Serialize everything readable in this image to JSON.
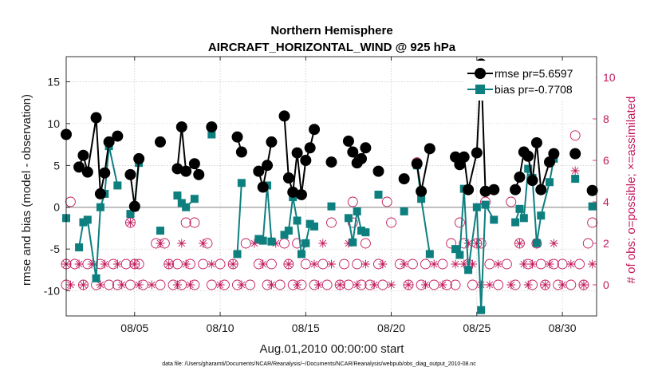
{
  "chart_data": {
    "type": "line",
    "title": "Northern Hemisphere",
    "subtitle": "AIRCRAFT_HORIZONTAL_WIND @ 925 hPa",
    "xlabel": "Aug.01,2010 00:00:00 start",
    "ylabel": "rmse and bias (model - observation)",
    "ylabel_right": "# of obs: o=possible; ×=assimilated",
    "footnote": "data file: /Users/gharamti/Documents/NCAR/Reanalysis/~/Documents/NCAR/Reanalysis/webpub/obs_diag_output_2010-08.nc",
    "xlim": [
      1,
      32
    ],
    "ylim": [
      -13,
      18
    ],
    "ylim_right": [
      -1.5,
      11
    ],
    "x_ticks": [
      5,
      10,
      15,
      20,
      25,
      30
    ],
    "x_tick_labels": [
      "08/05",
      "08/10",
      "08/15",
      "08/20",
      "08/25",
      "08/30"
    ],
    "y_ticks": [
      -10,
      -5,
      0,
      5,
      10,
      15
    ],
    "y_tick_labels": [
      "-10",
      "-5",
      "0",
      "5",
      "10",
      "15"
    ],
    "y_right_ticks": [
      0,
      2,
      4,
      6,
      8,
      10
    ],
    "y_right_tick_labels": [
      "0",
      "2",
      "4",
      "6",
      "8",
      "10"
    ],
    "grid": true,
    "legend_position": "top-right",
    "colors": {
      "rmse": "#000000",
      "bias": "#0e7f7f",
      "obs": "#c2185b",
      "grid": "#bbbbbb",
      "zero": "#aaaaaa"
    },
    "series": [
      {
        "name": "rmse",
        "legend_label": "rmse pr=5.6597",
        "marker": "circle",
        "points": [
          [
            1.0,
            8.7
          ],
          [
            1.75,
            4.8
          ],
          [
            2.0,
            6.2
          ],
          [
            2.25,
            4.2
          ],
          [
            2.75,
            10.7
          ],
          [
            3.0,
            1.6
          ],
          [
            3.25,
            4.1
          ],
          [
            3.5,
            7.8
          ],
          [
            4.0,
            8.5
          ],
          [
            4.75,
            3.9
          ],
          [
            5.0,
            0.1
          ],
          [
            5.25,
            5.8
          ],
          [
            6.5,
            7.8
          ],
          [
            7.5,
            4.6
          ],
          [
            7.75,
            9.6
          ],
          [
            8.0,
            4.3
          ],
          [
            8.5,
            5.2
          ],
          [
            8.75,
            3.9
          ],
          [
            9.5,
            9.6
          ],
          [
            11.0,
            8.4
          ],
          [
            11.25,
            6.6
          ],
          [
            12.25,
            4.3
          ],
          [
            12.5,
            2.4
          ],
          [
            12.75,
            5.0
          ],
          [
            13.0,
            7.8
          ],
          [
            13.75,
            10.9
          ],
          [
            14.0,
            3.5
          ],
          [
            14.25,
            1.8
          ],
          [
            14.5,
            6.5
          ],
          [
            14.75,
            1.5
          ],
          [
            15.0,
            5.6
          ],
          [
            15.25,
            7.1
          ],
          [
            15.5,
            9.3
          ],
          [
            16.5,
            5.4
          ],
          [
            17.5,
            7.9
          ],
          [
            17.75,
            6.6
          ],
          [
            18.0,
            5.3
          ],
          [
            18.25,
            5.8
          ],
          [
            18.5,
            7.1
          ],
          [
            19.25,
            4.3
          ],
          [
            20.75,
            3.4
          ],
          [
            21.5,
            5.2
          ],
          [
            21.75,
            1.9
          ],
          [
            22.25,
            7.0
          ],
          [
            23.75,
            6.0
          ],
          [
            24.0,
            5.1
          ],
          [
            24.25,
            6.0
          ],
          [
            24.5,
            2.1
          ],
          [
            25.0,
            6.5
          ],
          [
            25.25,
            17.1
          ],
          [
            25.5,
            1.9
          ],
          [
            26.0,
            2.1
          ],
          [
            27.25,
            2.1
          ],
          [
            27.5,
            3.6
          ],
          [
            27.75,
            6.6
          ],
          [
            28.0,
            6.1
          ],
          [
            28.25,
            3.2
          ],
          [
            28.5,
            7.7
          ],
          [
            28.75,
            2.1
          ],
          [
            29.25,
            5.4
          ],
          [
            29.5,
            6.4
          ],
          [
            30.75,
            6.4
          ],
          [
            31.75,
            2.0
          ]
        ]
      },
      {
        "name": "bias",
        "legend_label": "bias pr=-0.7708",
        "marker": "square",
        "points": [
          [
            1.0,
            -1.3
          ],
          [
            1.75,
            -4.8
          ],
          [
            2.0,
            -1.8
          ],
          [
            2.25,
            -1.5
          ],
          [
            2.75,
            -8.5
          ],
          [
            3.0,
            0.0
          ],
          [
            3.25,
            1.6
          ],
          [
            3.5,
            7.3
          ],
          [
            4.0,
            2.6
          ],
          [
            4.75,
            -0.8
          ],
          [
            5.0,
            0.0
          ],
          [
            5.25,
            5.3
          ],
          [
            6.5,
            -2.8
          ],
          [
            7.5,
            1.4
          ],
          [
            7.75,
            0.5
          ],
          [
            8.0,
            0.0
          ],
          [
            8.5,
            1.0
          ],
          [
            9.5,
            8.7
          ],
          [
            11.0,
            -5.6
          ],
          [
            11.25,
            2.9
          ],
          [
            12.25,
            -3.8
          ],
          [
            12.5,
            -4.0
          ],
          [
            12.75,
            2.6
          ],
          [
            13.0,
            -4.1
          ],
          [
            13.75,
            -3.3
          ],
          [
            14.0,
            -2.8
          ],
          [
            14.25,
            1.2
          ],
          [
            14.5,
            -1.6
          ],
          [
            14.75,
            -5.6
          ],
          [
            15.0,
            -4.3
          ],
          [
            15.25,
            -2.0
          ],
          [
            15.5,
            -2.3
          ],
          [
            16.5,
            0.1
          ],
          [
            17.5,
            -1.3
          ],
          [
            17.75,
            -4.2
          ],
          [
            18.0,
            -0.5
          ],
          [
            18.25,
            -2.8
          ],
          [
            18.5,
            -3.0
          ],
          [
            19.25,
            1.5
          ],
          [
            20.75,
            -0.5
          ],
          [
            21.5,
            5.0
          ],
          [
            21.75,
            1.0
          ],
          [
            22.25,
            -5.6
          ],
          [
            23.75,
            -5.0
          ],
          [
            24.0,
            -5.7
          ],
          [
            24.25,
            2.2
          ],
          [
            24.5,
            -7.5
          ],
          [
            25.0,
            0.0
          ],
          [
            25.25,
            -12.3
          ],
          [
            25.5,
            0.3
          ],
          [
            26.0,
            -1.5
          ],
          [
            27.25,
            -1.8
          ],
          [
            27.5,
            -0.2
          ],
          [
            27.75,
            -1.3
          ],
          [
            28.0,
            4.6
          ],
          [
            28.25,
            3.5
          ],
          [
            28.5,
            -4.3
          ],
          [
            28.75,
            -1.0
          ],
          [
            29.25,
            3.0
          ],
          [
            29.5,
            5.8
          ],
          [
            30.75,
            3.4
          ],
          [
            31.75,
            0.1
          ]
        ]
      }
    ],
    "obs_possible": [
      [
        1.0,
        1
      ],
      [
        1.0,
        0
      ],
      [
        1.25,
        4
      ],
      [
        1.5,
        1
      ],
      [
        2.0,
        0
      ],
      [
        2.25,
        1
      ],
      [
        2.75,
        0
      ],
      [
        3.0,
        1
      ],
      [
        3.5,
        0
      ],
      [
        3.75,
        1
      ],
      [
        4.0,
        0
      ],
      [
        4.5,
        1
      ],
      [
        4.75,
        0
      ],
      [
        4.75,
        3
      ],
      [
        5.0,
        1
      ],
      [
        5.25,
        1
      ],
      [
        5.5,
        0
      ],
      [
        6.25,
        2
      ],
      [
        6.5,
        0
      ],
      [
        6.75,
        2
      ],
      [
        7.0,
        1
      ],
      [
        7.25,
        0
      ],
      [
        7.5,
        1
      ],
      [
        7.75,
        0
      ],
      [
        8.0,
        3
      ],
      [
        8.25,
        1
      ],
      [
        8.5,
        0
      ],
      [
        8.5,
        3
      ],
      [
        9.0,
        1
      ],
      [
        9.25,
        2
      ],
      [
        9.5,
        0
      ],
      [
        10.0,
        1
      ],
      [
        10.25,
        0
      ],
      [
        10.75,
        1
      ],
      [
        11.0,
        0
      ],
      [
        11.5,
        2
      ],
      [
        11.75,
        0
      ],
      [
        12.25,
        1
      ],
      [
        12.75,
        0
      ],
      [
        13.0,
        1
      ],
      [
        13.5,
        0
      ],
      [
        13.75,
        2
      ],
      [
        14.0,
        1
      ],
      [
        14.25,
        0
      ],
      [
        14.5,
        2
      ],
      [
        14.75,
        0
      ],
      [
        15.0,
        1
      ],
      [
        15.5,
        0
      ],
      [
        16.0,
        1
      ],
      [
        16.25,
        0
      ],
      [
        16.5,
        3
      ],
      [
        17.0,
        0
      ],
      [
        17.25,
        1
      ],
      [
        17.5,
        0
      ],
      [
        17.75,
        4
      ],
      [
        17.75,
        3
      ],
      [
        18.0,
        1
      ],
      [
        18.25,
        0
      ],
      [
        18.5,
        2
      ],
      [
        18.75,
        0
      ],
      [
        19.25,
        1
      ],
      [
        19.5,
        0
      ],
      [
        19.75,
        4
      ],
      [
        20.0,
        3
      ],
      [
        20.5,
        1
      ],
      [
        21.0,
        0
      ],
      [
        21.25,
        1
      ],
      [
        21.5,
        5.9
      ],
      [
        21.75,
        0
      ],
      [
        22.0,
        1
      ],
      [
        22.5,
        0
      ],
      [
        23.0,
        1
      ],
      [
        23.25,
        0
      ],
      [
        23.5,
        2
      ],
      [
        23.75,
        0
      ],
      [
        24.0,
        3
      ],
      [
        24.25,
        2
      ],
      [
        24.5,
        1
      ],
      [
        24.75,
        0
      ],
      [
        25.0,
        2
      ],
      [
        25.25,
        2
      ],
      [
        25.5,
        4
      ],
      [
        25.75,
        1
      ],
      [
        26.25,
        0
      ],
      [
        26.75,
        1
      ],
      [
        27.0,
        4
      ],
      [
        27.25,
        0
      ],
      [
        27.5,
        2
      ],
      [
        28.0,
        1
      ],
      [
        28.25,
        0
      ],
      [
        28.5,
        2
      ],
      [
        28.75,
        1
      ],
      [
        29.0,
        0
      ],
      [
        29.5,
        1
      ],
      [
        29.75,
        0
      ],
      [
        30.0,
        1
      ],
      [
        30.5,
        0
      ],
      [
        30.75,
        7.2
      ],
      [
        31.0,
        1
      ],
      [
        31.25,
        0
      ],
      [
        31.5,
        2
      ],
      [
        31.75,
        3
      ]
    ],
    "obs_assimilated": [
      [
        1.0,
        1
      ],
      [
        1.25,
        0
      ],
      [
        1.75,
        1
      ],
      [
        2.0,
        0
      ],
      [
        2.5,
        1
      ],
      [
        3.0,
        0
      ],
      [
        3.25,
        1
      ],
      [
        4.0,
        1
      ],
      [
        4.25,
        0
      ],
      [
        4.75,
        3
      ],
      [
        5.0,
        1
      ],
      [
        5.25,
        0
      ],
      [
        6.0,
        0
      ],
      [
        6.5,
        2
      ],
      [
        7.0,
        1
      ],
      [
        7.5,
        0
      ],
      [
        7.75,
        2
      ],
      [
        8.0,
        1
      ],
      [
        8.25,
        0
      ],
      [
        9.0,
        2
      ],
      [
        9.5,
        1
      ],
      [
        10.0,
        0
      ],
      [
        10.75,
        1
      ],
      [
        11.25,
        0
      ],
      [
        12.0,
        2
      ],
      [
        12.5,
        1
      ],
      [
        13.0,
        0
      ],
      [
        13.25,
        2
      ],
      [
        14.0,
        1
      ],
      [
        14.5,
        0
      ],
      [
        15.0,
        2
      ],
      [
        15.5,
        1
      ],
      [
        15.75,
        0
      ],
      [
        16.0,
        2
      ],
      [
        16.5,
        1
      ],
      [
        17.0,
        0
      ],
      [
        17.5,
        2
      ],
      [
        18.0,
        0
      ],
      [
        18.5,
        1
      ],
      [
        19.0,
        0
      ],
      [
        19.5,
        1
      ],
      [
        20.0,
        0
      ],
      [
        20.75,
        1
      ],
      [
        21.0,
        0
      ],
      [
        21.5,
        5.9
      ],
      [
        22.0,
        0
      ],
      [
        22.5,
        1
      ],
      [
        23.0,
        0
      ],
      [
        23.75,
        1
      ],
      [
        24.25,
        1
      ],
      [
        24.5,
        2
      ],
      [
        24.75,
        1
      ],
      [
        25.0,
        2
      ],
      [
        25.25,
        0
      ],
      [
        25.75,
        0
      ],
      [
        26.25,
        1
      ],
      [
        27.0,
        0
      ],
      [
        27.5,
        2
      ],
      [
        27.75,
        1
      ],
      [
        28.0,
        0
      ],
      [
        28.25,
        1
      ],
      [
        28.5,
        2
      ],
      [
        29.0,
        0
      ],
      [
        29.25,
        1
      ],
      [
        29.5,
        2
      ],
      [
        30.0,
        0
      ],
      [
        30.5,
        1
      ],
      [
        30.75,
        5.5
      ],
      [
        31.25,
        0
      ],
      [
        31.75,
        1
      ]
    ]
  }
}
